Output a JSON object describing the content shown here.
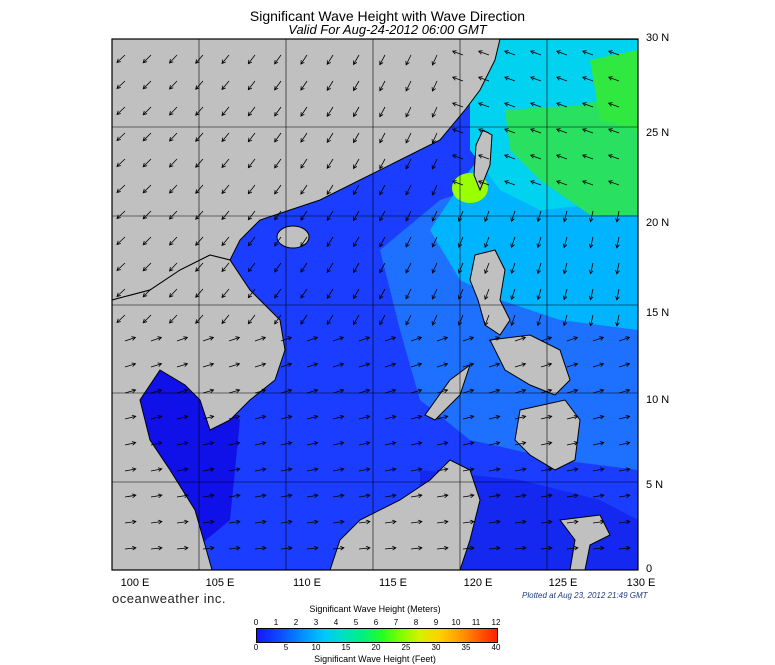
{
  "title": "Significant Wave Height with Wave Direction",
  "subtitle": "Valid For Aug-24-2012 06:00 GMT",
  "lat_labels": [
    "30 N",
    "25 N",
    "20 N",
    "15 N",
    "10 N",
    "5 N",
    "0"
  ],
  "lon_labels": [
    "100 E",
    "105 E",
    "110 E",
    "115 E",
    "120 E",
    "125 E",
    "130 E"
  ],
  "brand": "oceanweather inc.",
  "plotted": "Plotted at Aug 23, 2012 21:49 GMT",
  "colorbar": {
    "meters_title": "Significant Wave Height (Meters)",
    "meters_ticks": [
      "0",
      "1",
      "2",
      "3",
      "4",
      "5",
      "6",
      "7",
      "8",
      "9",
      "10",
      "11",
      "12"
    ],
    "feet_title": "Significant Wave Height (Feet)",
    "feet_ticks": [
      "0",
      "5",
      "10",
      "15",
      "20",
      "25",
      "30",
      "35",
      "40"
    ]
  },
  "colors": {
    "land": "#c0c0c0",
    "sea_low": "#1515ff",
    "sea_high": "#22ff22",
    "grid": "#000000"
  }
}
